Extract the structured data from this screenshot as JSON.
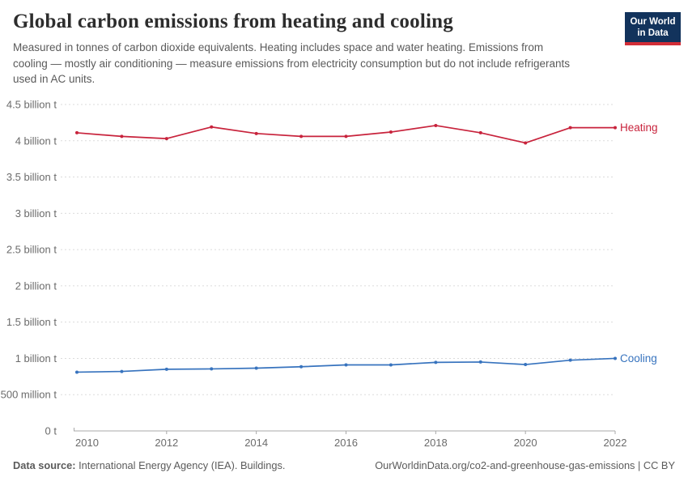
{
  "header": {
    "title": "Global carbon emissions from heating and cooling",
    "subtitle": "Measured in tonnes of carbon dioxide equivalents. Heating includes space and water heating. Emissions from cooling — mostly air conditioning — measure emissions from electricity consumption but do not include refrigerants used in AC units.",
    "logo": {
      "line1": "Our World",
      "line2": "in Data",
      "bg_color": "#12335c",
      "accent_color": "#d22d37"
    }
  },
  "footer": {
    "datasource_label": "Data source:",
    "datasource_text": " International Energy Agency (IEA). Buildings.",
    "attribution": "OurWorldinData.org/co2-and-greenhouse-gas-emissions | CC BY"
  },
  "colors": {
    "gridline": "#dbdbdb",
    "axis": "#a8a8a8",
    "tick_label": "#6b6b6b"
  },
  "chart_data": {
    "type": "line",
    "title": "Global carbon emissions from heating and cooling",
    "unit": "tonnes of CO2 equivalents",
    "x": [
      2010,
      2011,
      2012,
      2013,
      2014,
      2015,
      2016,
      2017,
      2018,
      2019,
      2020,
      2021,
      2022
    ],
    "series": [
      {
        "name": "Heating",
        "color": "#c8233c",
        "values": [
          4.11,
          4.06,
          4.03,
          4.19,
          4.1,
          4.06,
          4.06,
          4.12,
          4.21,
          4.11,
          3.97,
          4.18,
          4.18
        ]
      },
      {
        "name": "Cooling",
        "color": "#3773be",
        "values": [
          0.81,
          0.82,
          0.85,
          0.855,
          0.865,
          0.885,
          0.91,
          0.91,
          0.945,
          0.95,
          0.915,
          0.975,
          1.0
        ]
      }
    ],
    "values_unit": "billion t",
    "xlim": [
      2010,
      2022
    ],
    "ylim": [
      0,
      4.5
    ],
    "grid": "horizontal-dashed",
    "legend_position": "right-of-line",
    "yticks": [
      {
        "v": 0.0,
        "label": "0 t"
      },
      {
        "v": 0.5,
        "label": "500 million t"
      },
      {
        "v": 1.0,
        "label": "1 billion t"
      },
      {
        "v": 1.5,
        "label": "1.5 billion t"
      },
      {
        "v": 2.0,
        "label": "2 billion t"
      },
      {
        "v": 2.5,
        "label": "2.5 billion t"
      },
      {
        "v": 3.0,
        "label": "3 billion t"
      },
      {
        "v": 3.5,
        "label": "3.5 billion t"
      },
      {
        "v": 4.0,
        "label": "4 billion t"
      },
      {
        "v": 4.5,
        "label": "4.5 billion t"
      }
    ],
    "xticks": [
      {
        "v": 2010,
        "label": "2010"
      },
      {
        "v": 2012,
        "label": "2012"
      },
      {
        "v": 2014,
        "label": "2014"
      },
      {
        "v": 2016,
        "label": "2016"
      },
      {
        "v": 2018,
        "label": "2018"
      },
      {
        "v": 2020,
        "label": "2020"
      },
      {
        "v": 2022,
        "label": "2022"
      }
    ]
  }
}
